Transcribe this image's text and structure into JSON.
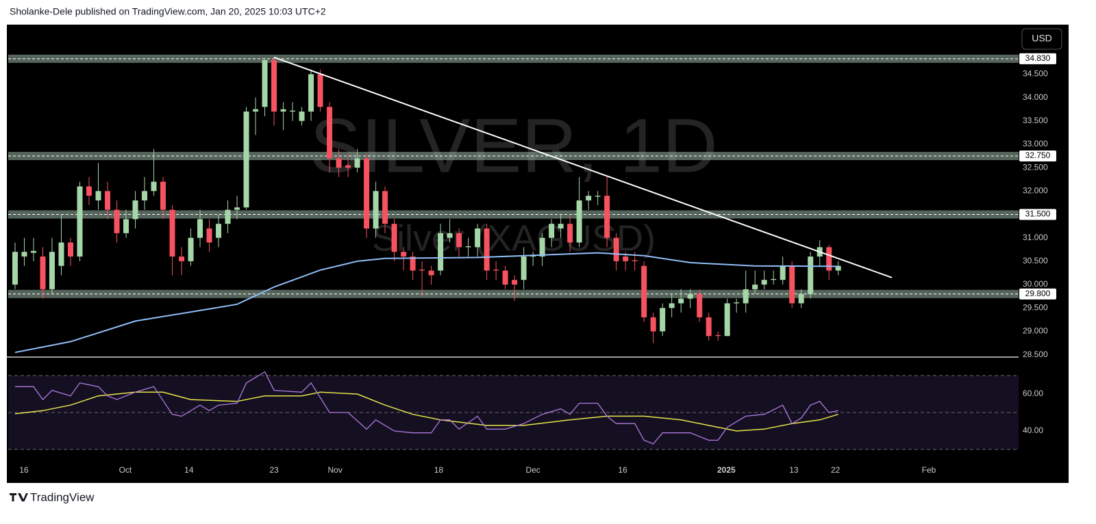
{
  "header": {
    "text": "Sholanke-Dele published on TradingView.com, Jan 20, 2025 10:03 UTC+2"
  },
  "footer": {
    "brand": "TradingView"
  },
  "currency_button": "USD",
  "chart_data": {
    "type": "candlestick",
    "watermark": {
      "title": "SILVER, 1D",
      "subtitle": "Silver (XAGUSD)"
    },
    "xlim": [
      -0.74,
      108.5
    ],
    "xticks": [
      {
        "value": 0.96,
        "label": "16"
      },
      {
        "value": 11.92,
        "label": "Oct"
      },
      {
        "value": 18.8,
        "label": "14"
      },
      {
        "value": 28.0,
        "label": "23"
      },
      {
        "value": 34.6,
        "label": "Nov"
      },
      {
        "value": 45.8,
        "label": "18"
      },
      {
        "value": 56.0,
        "label": "Dec"
      },
      {
        "value": 65.7,
        "label": "16"
      },
      {
        "value": 76.9,
        "label": "2025"
      },
      {
        "value": 84.2,
        "label": "13"
      },
      {
        "value": 88.7,
        "label": "22"
      },
      {
        "value": 98.8,
        "label": "Feb"
      }
    ],
    "ylim": [
      28.45,
      35.53
    ],
    "yticks": [
      {
        "value": 28.5,
        "label": "28.500"
      },
      {
        "value": 29.0,
        "label": "29.000"
      },
      {
        "value": 29.5,
        "label": "29.500"
      },
      {
        "value": 30.0,
        "label": "30.000"
      },
      {
        "value": 30.5,
        "label": "30.500"
      },
      {
        "value": 31.0,
        "label": "31.000"
      },
      {
        "value": 32.0,
        "label": "32.000"
      },
      {
        "value": 32.5,
        "label": "32.500"
      },
      {
        "value": 33.0,
        "label": "33.000"
      },
      {
        "value": 33.5,
        "label": "33.500"
      },
      {
        "value": 34.0,
        "label": "34.000"
      },
      {
        "value": 34.5,
        "label": "34.500"
      }
    ],
    "up_color": "#a5d6a7",
    "down_color": "#f7525f",
    "open": [
      30.0,
      30.6,
      30.68,
      30.6,
      29.9,
      30.4,
      30.9,
      30.6,
      32.1,
      31.8,
      32.0,
      31.6,
      31.1,
      31.4,
      31.8,
      32.0,
      32.2,
      31.6,
      30.6,
      30.5,
      31.0,
      31.2,
      31.0,
      31.3,
      31.6,
      31.65,
      33.7,
      33.8,
      34.8,
      33.7,
      33.7,
      33.5,
      33.7,
      34.5,
      33.8,
      32.7,
      32.55,
      32.5,
      32.7,
      31.2,
      32.0,
      31.3,
      30.7,
      30.6,
      30.32,
      30.3,
      30.3,
      31.0,
      31.1,
      30.8,
      30.8,
      31.2,
      30.32,
      30.3,
      30.1,
      30.1,
      30.6,
      30.6,
      31.0,
      31.2,
      31.3,
      30.9,
      31.8,
      31.88,
      31.9,
      31.0,
      30.6,
      30.52,
      30.4,
      29.3,
      29.0,
      29.5,
      29.6,
      29.7,
      29.8,
      29.3,
      28.92,
      28.9,
      29.6,
      29.6,
      29.9,
      30.0,
      30.1,
      30.1,
      30.4,
      29.6,
      29.8,
      30.6,
      30.8,
      30.3
    ],
    "high": [
      30.9,
      31.0,
      31.0,
      30.8,
      31.0,
      31.5,
      31.0,
      32.2,
      32.3,
      32.6,
      32.2,
      31.8,
      31.6,
      32.0,
      32.3,
      32.9,
      32.3,
      31.7,
      30.8,
      31.2,
      31.6,
      31.4,
      31.5,
      31.8,
      31.9,
      33.8,
      34.0,
      34.85,
      34.85,
      33.9,
      33.9,
      33.8,
      34.6,
      34.6,
      33.9,
      32.9,
      32.8,
      32.9,
      32.8,
      32.2,
      32.1,
      31.4,
      30.8,
      30.7,
      30.5,
      30.4,
      31.3,
      31.4,
      31.2,
      31.0,
      31.3,
      31.3,
      30.5,
      30.4,
      30.2,
      30.8,
      30.7,
      31.1,
      31.4,
      31.5,
      31.5,
      32.3,
      32.0,
      32.0,
      32.3,
      31.1,
      30.7,
      30.7,
      30.5,
      29.4,
      29.6,
      29.8,
      29.9,
      29.9,
      29.9,
      29.4,
      29.0,
      29.7,
      29.7,
      30.3,
      30.3,
      30.3,
      30.3,
      30.6,
      30.5,
      29.9,
      30.7,
      30.95,
      30.85,
      30.5
    ],
    "low": [
      29.9,
      30.4,
      30.5,
      29.7,
      29.8,
      30.2,
      30.4,
      30.5,
      31.7,
      31.6,
      31.4,
      30.9,
      31.0,
      31.2,
      31.6,
      31.9,
      31.4,
      30.2,
      30.2,
      30.4,
      30.8,
      30.7,
      30.8,
      31.1,
      31.4,
      31.6,
      33.2,
      33.6,
      33.4,
      33.3,
      33.5,
      33.4,
      33.5,
      33.7,
      32.4,
      32.3,
      32.3,
      32.4,
      31.0,
      31.0,
      31.1,
      30.5,
      30.3,
      30.1,
      29.75,
      30.0,
      30.2,
      30.9,
      30.6,
      30.6,
      30.6,
      30.1,
      30.1,
      29.9,
      29.65,
      29.9,
      30.4,
      30.4,
      30.8,
      31.0,
      30.7,
      30.8,
      31.6,
      31.7,
      30.8,
      30.3,
      30.3,
      30.3,
      29.2,
      28.75,
      28.9,
      29.3,
      29.4,
      29.5,
      29.2,
      28.8,
      28.8,
      28.9,
      29.4,
      29.4,
      29.8,
      29.9,
      30.0,
      30.0,
      29.5,
      29.5,
      29.7,
      30.4,
      30.1,
      30.2
    ],
    "close": [
      30.7,
      30.7,
      30.72,
      29.9,
      30.7,
      30.9,
      30.6,
      32.1,
      31.9,
      32.0,
      31.6,
      31.1,
      31.4,
      31.8,
      32.0,
      32.2,
      31.6,
      30.6,
      30.5,
      31.0,
      31.4,
      30.9,
      31.3,
      31.6,
      31.65,
      33.7,
      33.75,
      34.8,
      33.7,
      33.75,
      33.72,
      33.7,
      34.5,
      33.8,
      32.7,
      32.5,
      32.5,
      32.7,
      31.2,
      32.0,
      31.3,
      30.7,
      30.6,
      30.3,
      30.3,
      30.2,
      31.1,
      31.1,
      30.8,
      30.82,
      31.2,
      30.3,
      30.3,
      30.0,
      30.0,
      30.6,
      30.62,
      31.0,
      31.3,
      31.3,
      30.9,
      31.8,
      31.9,
      31.9,
      31.0,
      30.5,
      30.5,
      30.5,
      29.3,
      29.0,
      29.5,
      29.6,
      29.7,
      29.8,
      29.3,
      28.9,
      28.9,
      29.6,
      29.62,
      29.9,
      30.0,
      30.1,
      30.12,
      30.4,
      29.6,
      29.8,
      30.6,
      30.8,
      30.3,
      30.4
    ],
    "moving_average": {
      "color": "#90bff9",
      "x": [
        0,
        6,
        13,
        21,
        24,
        28,
        33,
        37,
        40,
        50,
        63,
        68,
        73,
        80,
        89
      ],
      "values": [
        28.55,
        28.78,
        29.22,
        29.48,
        29.58,
        29.95,
        30.31,
        30.5,
        30.56,
        30.58,
        30.68,
        30.62,
        30.47,
        30.4,
        30.39
      ]
    },
    "levels": [
      {
        "value": 34.83,
        "label": "34.830"
      },
      {
        "value": 32.75,
        "label": "32.750"
      },
      {
        "value": 31.5,
        "label": "31.500"
      },
      {
        "value": 29.8,
        "label": "29.800"
      }
    ],
    "level_color": "#8fa89a",
    "trendline": {
      "color": "#ffffff",
      "x": [
        28.0,
        94.8
      ],
      "values": [
        34.86,
        30.15
      ]
    },
    "rsi": {
      "ylim": [
        21.5,
        78.9
      ],
      "yticks": [
        {
          "value": 60,
          "label": "60.00"
        },
        {
          "value": 40,
          "label": "40.00"
        }
      ],
      "bands": [
        70,
        50,
        30
      ],
      "color": "#b07ce0",
      "x": [
        0,
        2,
        3,
        4,
        6,
        7,
        9,
        10,
        11,
        13,
        15,
        17,
        18,
        20,
        21,
        22,
        24,
        25,
        27,
        28,
        31,
        32,
        34,
        36,
        38,
        39,
        41,
        43,
        45,
        46,
        47,
        48,
        50,
        51,
        53,
        55,
        57,
        59,
        60,
        61,
        63,
        64,
        65,
        67,
        68,
        69,
        70,
        73,
        75,
        76,
        77,
        79,
        81,
        83,
        84,
        85,
        86,
        87,
        88,
        89
      ],
      "values": [
        64,
        64,
        57,
        62,
        59,
        66,
        64,
        59,
        57,
        61,
        64,
        49,
        48,
        54,
        51,
        54,
        55,
        66,
        72,
        62,
        61,
        66,
        50,
        50,
        41,
        46,
        40,
        39,
        39,
        46,
        46,
        41,
        48,
        41,
        41,
        44,
        49,
        52,
        49,
        55,
        55,
        48,
        44,
        44,
        35,
        33,
        39,
        39,
        35,
        35,
        42,
        48,
        49,
        54,
        44,
        47,
        54,
        56,
        50,
        51
      ],
      "ma": {
        "color": "#e6e64a",
        "x": [
          0,
          3,
          6,
          9,
          13,
          16,
          19,
          24,
          27,
          31,
          33,
          37,
          40,
          43,
          46,
          51,
          55,
          60,
          64,
          68,
          72,
          75,
          78,
          81,
          84,
          87,
          89
        ],
        "values": [
          49.3,
          51,
          54,
          59,
          61,
          61,
          57,
          56,
          59,
          59,
          61,
          60,
          54,
          49,
          46,
          43,
          43,
          46,
          48,
          48,
          46,
          43,
          40,
          41,
          44,
          46,
          49
        ]
      }
    }
  }
}
